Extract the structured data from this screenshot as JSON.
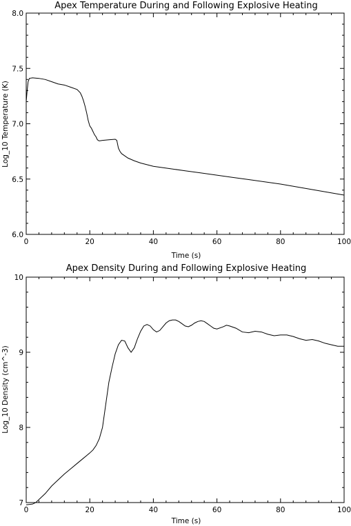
{
  "chart_data": [
    {
      "type": "line",
      "title": "Apex Temperature During and Following Explosive Heating",
      "xlabel": "Time (s)",
      "ylabel": "Log_10 Temperature (K)",
      "xlim": [
        0,
        100
      ],
      "ylim": [
        6.0,
        8.0
      ],
      "xticks": [
        0,
        20,
        40,
        60,
        80,
        100
      ],
      "yticks": [
        6.0,
        6.5,
        7.0,
        7.5,
        8.0
      ],
      "xtick_labels": [
        "0",
        "20",
        "40",
        "60",
        "80",
        "100"
      ],
      "ytick_labels": [
        "6.0",
        "6.5",
        "7.0",
        "7.5",
        "8.0"
      ],
      "grid": false,
      "series": [
        {
          "x": [
            0,
            0.3,
            0.6,
            1,
            2,
            4,
            6,
            8,
            10,
            12,
            14,
            16,
            17,
            17.5,
            18,
            18.5,
            19,
            19.5,
            20,
            20.5,
            21,
            21.5,
            22,
            22.3,
            22.6,
            23,
            24,
            26,
            28,
            28.5,
            29,
            29.5,
            30,
            31,
            32,
            34,
            36,
            38,
            40,
            45,
            50,
            55,
            60,
            65,
            70,
            75,
            80,
            85,
            90,
            95,
            100
          ],
          "y": [
            7.2,
            7.3,
            7.38,
            7.41,
            7.415,
            7.41,
            7.4,
            7.38,
            7.36,
            7.35,
            7.33,
            7.31,
            7.28,
            7.25,
            7.21,
            7.16,
            7.1,
            7.03,
            6.98,
            6.96,
            6.93,
            6.9,
            6.88,
            6.86,
            6.85,
            6.845,
            6.85,
            6.855,
            6.86,
            6.85,
            6.78,
            6.75,
            6.73,
            6.71,
            6.69,
            6.665,
            6.645,
            6.63,
            6.615,
            6.595,
            6.575,
            6.555,
            6.535,
            6.515,
            6.495,
            6.475,
            6.455,
            6.43,
            6.405,
            6.38,
            6.355
          ]
        }
      ]
    },
    {
      "type": "line",
      "title": "Apex Density During and Following Explosive Heating",
      "xlabel": "Time (s)",
      "ylabel": "Log_10 Density (cm^-3)",
      "xlim": [
        0,
        100
      ],
      "ylim": [
        7,
        10
      ],
      "xticks": [
        0,
        20,
        40,
        60,
        80,
        100
      ],
      "yticks": [
        7,
        8,
        9,
        10
      ],
      "xtick_labels": [
        "0",
        "20",
        "40",
        "60",
        "80",
        "100"
      ],
      "ytick_labels": [
        "7",
        "8",
        "9",
        "10"
      ],
      "grid": false,
      "series": [
        {
          "x": [
            0,
            2,
            3,
            4,
            5,
            6,
            8,
            10,
            12,
            14,
            16,
            18,
            20,
            21,
            22,
            23,
            24,
            25,
            26,
            27,
            28,
            29,
            30,
            31,
            32,
            33,
            34,
            35,
            36,
            37,
            38,
            39,
            40,
            41,
            42,
            43,
            44,
            45,
            46,
            47,
            48,
            49,
            50,
            51,
            52,
            53,
            54,
            55,
            56,
            57,
            58,
            59,
            60,
            62,
            63,
            64,
            66,
            68,
            70,
            72,
            74,
            76,
            78,
            80,
            82,
            84,
            86,
            88,
            90,
            92,
            94,
            96,
            98,
            100
          ],
          "y": [
            6.97,
            6.98,
            7.0,
            7.04,
            7.08,
            7.12,
            7.22,
            7.3,
            7.38,
            7.45,
            7.52,
            7.59,
            7.66,
            7.7,
            7.76,
            7.85,
            8.0,
            8.3,
            8.6,
            8.8,
            8.98,
            9.1,
            9.16,
            9.15,
            9.06,
            9.0,
            9.06,
            9.18,
            9.28,
            9.35,
            9.37,
            9.35,
            9.3,
            9.27,
            9.29,
            9.34,
            9.39,
            9.42,
            9.43,
            9.43,
            9.41,
            9.38,
            9.35,
            9.34,
            9.36,
            9.39,
            9.41,
            9.42,
            9.41,
            9.38,
            9.35,
            9.32,
            9.31,
            9.34,
            9.36,
            9.35,
            9.32,
            9.27,
            9.26,
            9.28,
            9.27,
            9.24,
            9.22,
            9.23,
            9.23,
            9.21,
            9.18,
            9.16,
            9.17,
            9.15,
            9.12,
            9.1,
            9.08,
            9.08
          ]
        }
      ]
    }
  ]
}
